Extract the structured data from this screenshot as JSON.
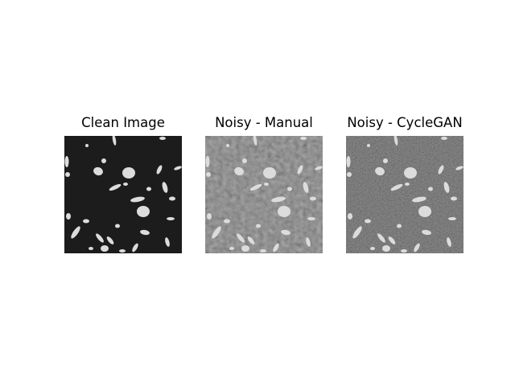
{
  "panels": [
    {
      "title": "Clean Image",
      "variant": "clean"
    },
    {
      "title": "Noisy - Manual",
      "variant": "manual"
    },
    {
      "title": "Noisy - CycleGAN",
      "variant": "cyclegan"
    }
  ],
  "colors": {
    "clean_background": "#1c1c1c",
    "manual_background": "#5e5e5e",
    "cyclegan_background": "#3a3a3a",
    "particle": "#dcdcdc"
  }
}
